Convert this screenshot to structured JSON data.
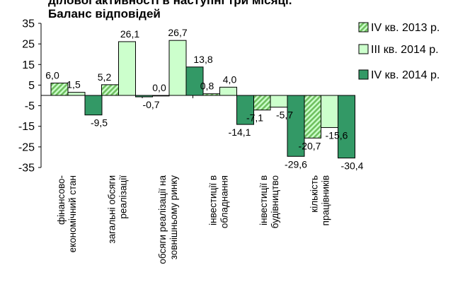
{
  "chart_data": {
    "type": "bar",
    "title": "ділової активності в наступні три місяці.",
    "subtitle": "Баланс відповідей",
    "xlabel": "",
    "ylabel": "",
    "ylim": [
      -35,
      35
    ],
    "yticks": [
      35,
      25,
      15,
      5,
      -5,
      -15,
      -25,
      -35
    ],
    "grid": false,
    "legend_position": "right",
    "categories": [
      [
        "фінансово-",
        "економічний стан"
      ],
      [
        "загальні обсяги",
        "реалізації"
      ],
      [
        "обсяги реалізації на",
        "зовнішньому ринку"
      ],
      [
        "інвестиції в",
        "обладнання"
      ],
      [
        "інвестиції в",
        "будівництво"
      ],
      [
        "кількість",
        "працівників"
      ]
    ],
    "series": [
      {
        "name": "IV кв. 2013 р.",
        "values": [
          6.0,
          5.2,
          0.0,
          0.8,
          -7.1,
          -20.7
        ],
        "labels": [
          "6,0",
          "5,2",
          "0,0",
          "0,8",
          "-7,1",
          "-20,7"
        ],
        "color": "#6fbf5f",
        "pattern": "hatch"
      },
      {
        "name": "III кв. 2014 р.",
        "values": [
          1.5,
          26.1,
          26.7,
          4.0,
          -5.7,
          -15.6
        ],
        "labels": [
          "1,5",
          "26,1",
          "26,7",
          "4,0",
          "-5,7",
          "-15,6"
        ],
        "color": "#ccffcc"
      },
      {
        "name": "IV кв. 2014 р.",
        "values": [
          -9.5,
          -0.7,
          13.8,
          -14.1,
          -29.6,
          -30.4
        ],
        "labels": [
          "-9,5",
          "-0,7",
          "13,8",
          "-14,1",
          "-29,6",
          "-30,4"
        ],
        "color": "#339966"
      }
    ]
  }
}
